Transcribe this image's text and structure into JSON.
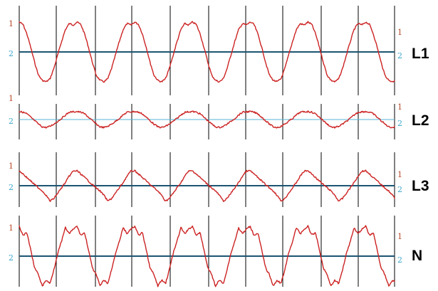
{
  "chart_data": [
    {
      "type": "line",
      "channel_label": "L1",
      "title": "",
      "xlabel": "",
      "ylabel": "",
      "cycles": 6.5,
      "ylim": [
        -1.2,
        1.2
      ],
      "marker_labels": {
        "top": "1",
        "baseline": "2"
      },
      "series": [
        {
          "values": [
            1.0,
            0.92,
            0.6,
            0.15,
            -0.35,
            -0.78,
            -0.95,
            -1.0,
            -0.9,
            -0.55,
            -0.1,
            0.35,
            0.75,
            0.95,
            0.9
          ]
        }
      ]
    },
    {
      "type": "line",
      "channel_label": "L2",
      "title": "",
      "xlabel": "",
      "ylabel": "",
      "cycles": 6.5,
      "ylim": [
        -1.2,
        1.2
      ],
      "marker_labels": {
        "top": "1",
        "baseline": "2"
      },
      "series": [
        {
          "values": [
            0.35,
            0.32,
            0.25,
            0.1,
            -0.05,
            -0.2,
            -0.32,
            -0.35,
            -0.3,
            -0.2,
            -0.08,
            0.05,
            0.2,
            0.32,
            0.34
          ]
        }
      ]
    },
    {
      "type": "line",
      "channel_label": "L3",
      "title": "",
      "xlabel": "",
      "ylabel": "",
      "cycles": 6.5,
      "ylim": [
        -1.2,
        1.2
      ],
      "marker_labels": {
        "top": "1",
        "baseline": "2"
      },
      "series": [
        {
          "values": [
            0.7,
            0.55,
            0.38,
            0.22,
            0.05,
            -0.1,
            -0.25,
            -0.45,
            -0.72,
            -0.6,
            -0.35,
            -0.1,
            0.15,
            0.45,
            0.68
          ]
        }
      ]
    },
    {
      "type": "line",
      "channel_label": "N",
      "title": "",
      "xlabel": "",
      "ylabel": "",
      "cycles": 6.5,
      "ylim": [
        -1.2,
        1.2
      ],
      "marker_labels": {
        "top": "1",
        "baseline": "2"
      },
      "series": [
        {
          "values": [
            1.0,
            0.7,
            0.78,
            0.2,
            -0.4,
            -0.62,
            -1.0,
            -0.8,
            -0.92,
            -0.45,
            0.1,
            0.5,
            0.95,
            0.75,
            0.9
          ]
        }
      ]
    }
  ],
  "colors": {
    "trace": "#cc2222",
    "baseline": "#1c5573",
    "baseline_thin": "#56b4d4",
    "marker_top": "#b84a2a",
    "marker_baseline": "#3aa6cc",
    "gridline": "#000000"
  }
}
